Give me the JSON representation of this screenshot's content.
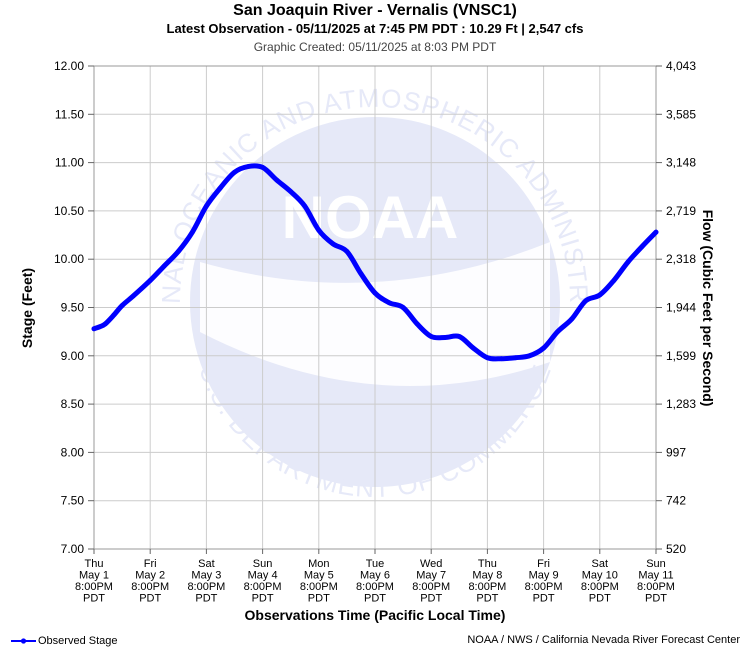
{
  "header": {
    "title": "San Joaquin River - Vernalis (VNSC1)",
    "subtitle": "Latest Observation - 05/11/2025 at 7:45 PM PDT : 10.29 Ft | 2,547 cfs",
    "created": "Graphic Created: 05/11/2025 at 8:03 PM PDT"
  },
  "footer": {
    "legend_label": "Observed Stage",
    "credit": "NOAA / NWS / California Nevada River Forecast Center"
  },
  "watermark": {
    "center_text": "NOAA",
    "ring_top": "NATIONAL OCEANIC AND ATMOSPHERIC ADMINISTRATION",
    "ring_bottom": "U.S. DEPARTMENT OF COMMERCE"
  },
  "colors": {
    "series": "#0000ff",
    "grid": "#cccccc",
    "watermark": "#e6e9f8"
  },
  "chart_data": {
    "type": "line",
    "title": "San Joaquin River - Vernalis (VNSC1)",
    "xlabel": "Observations Time (Pacific Local Time)",
    "ylabel": "Stage (Feet)",
    "y2label": "Flow (Cubic Feet per Second)",
    "ylim": [
      7.0,
      12.0
    ],
    "y_ticks": [
      "7.00",
      "7.50",
      "8.00",
      "8.50",
      "9.00",
      "9.50",
      "10.00",
      "10.50",
      "11.00",
      "11.50",
      "12.00"
    ],
    "y2_ticks": [
      "520",
      "742",
      "997",
      "1,283",
      "1,599",
      "1,944",
      "2,318",
      "2,719",
      "3,148",
      "3,585",
      "4,043"
    ],
    "x_ticks": [
      [
        "Thu",
        "May 1",
        "8:00PM",
        "PDT"
      ],
      [
        "Fri",
        "May 2",
        "8:00PM",
        "PDT"
      ],
      [
        "Sat",
        "May 3",
        "8:00PM",
        "PDT"
      ],
      [
        "Sun",
        "May 4",
        "8:00PM",
        "PDT"
      ],
      [
        "Mon",
        "May 5",
        "8:00PM",
        "PDT"
      ],
      [
        "Tue",
        "May 6",
        "8:00PM",
        "PDT"
      ],
      [
        "Wed",
        "May 7",
        "8:00PM",
        "PDT"
      ],
      [
        "Thu",
        "May 8",
        "8:00PM",
        "PDT"
      ],
      [
        "Fri",
        "May 9",
        "8:00PM",
        "PDT"
      ],
      [
        "Sat",
        "May 10",
        "8:00PM",
        "PDT"
      ],
      [
        "Sun",
        "May 11",
        "8:00PM",
        "PDT"
      ]
    ],
    "grid": true,
    "legend_position": "bottom-left",
    "series": [
      {
        "name": "Observed Stage",
        "x_days": [
          0,
          0.1,
          0.2,
          0.35,
          0.5,
          0.7,
          1.0,
          1.25,
          1.5,
          1.75,
          2.0,
          2.25,
          2.5,
          2.75,
          3.0,
          3.25,
          3.5,
          3.75,
          4.0,
          4.25,
          4.5,
          4.75,
          5.0,
          5.25,
          5.5,
          5.75,
          6.0,
          6.25,
          6.5,
          6.75,
          7.0,
          7.25,
          7.5,
          7.75,
          8.0,
          8.25,
          8.5,
          8.75,
          9.0,
          9.25,
          9.5,
          9.75,
          10.0
        ],
        "values": [
          9.28,
          9.3,
          9.33,
          9.42,
          9.52,
          9.62,
          9.78,
          9.93,
          10.08,
          10.28,
          10.55,
          10.74,
          10.9,
          10.96,
          10.95,
          10.82,
          10.7,
          10.55,
          10.3,
          10.16,
          10.08,
          9.85,
          9.65,
          9.55,
          9.5,
          9.33,
          9.2,
          9.19,
          9.2,
          9.08,
          8.98,
          8.97,
          8.98,
          9.0,
          9.08,
          9.25,
          9.38,
          9.57,
          9.63,
          9.78,
          9.97,
          10.13,
          10.28
        ]
      }
    ]
  }
}
